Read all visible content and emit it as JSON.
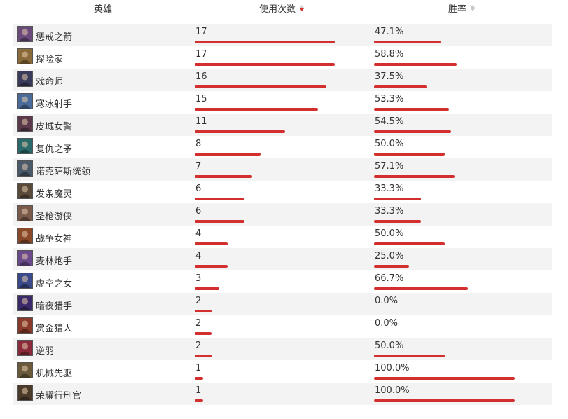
{
  "header": {
    "hero_label": "英雄",
    "uses_label": "使用次数",
    "winrate_label": "胜率"
  },
  "colors": {
    "bar": "#d32f2f",
    "row_alt": "#f3f3f3"
  },
  "rows": [
    {
      "name": "惩戒之箭",
      "uses": "17",
      "uses_value": 17,
      "rate": "47.1%",
      "rate_value": 47.1,
      "avatar": "champion-portrait",
      "tint": "#6a4a7a"
    },
    {
      "name": "探险家",
      "uses": "17",
      "uses_value": 17,
      "rate": "58.8%",
      "rate_value": 58.8,
      "avatar": "champion-portrait",
      "tint": "#8a6a3a"
    },
    {
      "name": "戏命师",
      "uses": "16",
      "uses_value": 16,
      "rate": "37.5%",
      "rate_value": 37.5,
      "avatar": "champion-portrait",
      "tint": "#3a3a5a"
    },
    {
      "name": "寒冰射手",
      "uses": "15",
      "uses_value": 15,
      "rate": "53.3%",
      "rate_value": 53.3,
      "avatar": "champion-portrait",
      "tint": "#4a6a9a"
    },
    {
      "name": "皮城女警",
      "uses": "11",
      "uses_value": 11,
      "rate": "54.5%",
      "rate_value": 54.5,
      "avatar": "champion-portrait",
      "tint": "#5a3a4a"
    },
    {
      "name": "复仇之矛",
      "uses": "8",
      "uses_value": 8,
      "rate": "50.0%",
      "rate_value": 50.0,
      "avatar": "champion-portrait",
      "tint": "#2a6a6a"
    },
    {
      "name": "诺克萨斯统领",
      "uses": "7",
      "uses_value": 7,
      "rate": "57.1%",
      "rate_value": 57.1,
      "avatar": "champion-portrait",
      "tint": "#4a5a6a"
    },
    {
      "name": "发条魔灵",
      "uses": "6",
      "uses_value": 6,
      "rate": "33.3%",
      "rate_value": 33.3,
      "avatar": "champion-portrait",
      "tint": "#5a4a3a"
    },
    {
      "name": "圣枪游侠",
      "uses": "6",
      "uses_value": 6,
      "rate": "33.3%",
      "rate_value": 33.3,
      "avatar": "champion-portrait",
      "tint": "#7a5a4a"
    },
    {
      "name": "战争女神",
      "uses": "4",
      "uses_value": 4,
      "rate": "50.0%",
      "rate_value": 50.0,
      "avatar": "champion-portrait",
      "tint": "#8a4a2a"
    },
    {
      "name": "麦林炮手",
      "uses": "4",
      "uses_value": 4,
      "rate": "25.0%",
      "rate_value": 25.0,
      "avatar": "champion-portrait",
      "tint": "#6a4a8a"
    },
    {
      "name": "虚空之女",
      "uses": "3",
      "uses_value": 3,
      "rate": "66.7%",
      "rate_value": 66.7,
      "avatar": "champion-portrait",
      "tint": "#3a4a8a"
    },
    {
      "name": "暗夜猎手",
      "uses": "2",
      "uses_value": 2,
      "rate": "0.0%",
      "rate_value": 0.0,
      "avatar": "champion-portrait",
      "tint": "#3a2a6a"
    },
    {
      "name": "赏金猎人",
      "uses": "2",
      "uses_value": 2,
      "rate": "0.0%",
      "rate_value": 0.0,
      "avatar": "champion-portrait",
      "tint": "#8a3a2a"
    },
    {
      "name": "逆羽",
      "uses": "2",
      "uses_value": 2,
      "rate": "50.0%",
      "rate_value": 50.0,
      "avatar": "champion-portrait",
      "tint": "#8a2a3a"
    },
    {
      "name": "机械先驱",
      "uses": "1",
      "uses_value": 1,
      "rate": "100.0%",
      "rate_value": 100.0,
      "avatar": "champion-portrait",
      "tint": "#6a5a3a"
    },
    {
      "name": "荣耀行刑官",
      "uses": "1",
      "uses_value": 1,
      "rate": "100.0%",
      "rate_value": 100.0,
      "avatar": "champion-portrait",
      "tint": "#4a3a2a"
    }
  ]
}
